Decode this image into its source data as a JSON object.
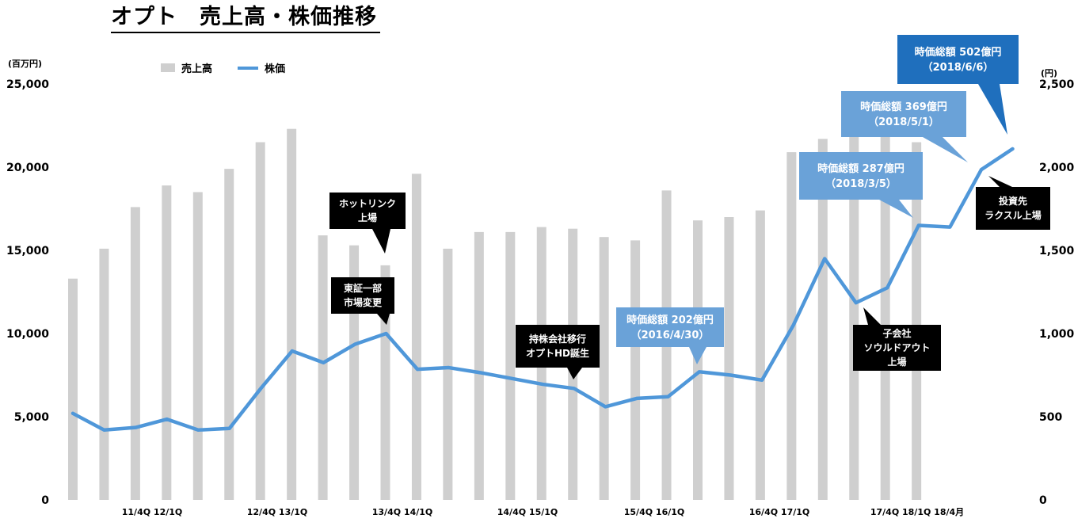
{
  "title": "オプト　売上高・株価推移",
  "left_unit": "(百万円)",
  "right_unit": "(円)",
  "legend": {
    "bar_label": "売上高",
    "line_label": "株価"
  },
  "colors": {
    "bar": "#cfcfcf",
    "line": "#4f97d9",
    "callout_dark": "#000000",
    "callout_blue": "#6aa2d8",
    "callout_blue_dark": "#1f6fbd"
  },
  "chart_data": {
    "type": "bar+line",
    "y_left": {
      "min": 0,
      "max": 25000,
      "ticks": [
        "0",
        "5,000",
        "10,000",
        "15,000",
        "20,000",
        "25,000"
      ]
    },
    "y_right": {
      "min": 0,
      "max": 2500,
      "ticks": [
        "0",
        "500",
        "1,000",
        "1,500",
        "2,000",
        "2,500"
      ]
    },
    "x_labels": [
      "11/4Q 12/1Q",
      "12/4Q 13/1Q",
      "13/4Q 14/1Q",
      "14/4Q 15/1Q",
      "15/4Q 16/1Q",
      "16/4Q 17/1Q",
      "17/4Q 18/1Q 18/4月"
    ],
    "series": [
      {
        "name": "売上高",
        "type": "bar",
        "axis": "left",
        "values": [
          13300,
          15100,
          17600,
          18900,
          18500,
          19900,
          21500,
          22300,
          15900,
          15300,
          14100,
          19600,
          15100,
          16100,
          16100,
          16400,
          16300,
          15800,
          15600,
          18600,
          16800,
          17000,
          17400,
          20900,
          21700,
          22500,
          23000,
          21500
        ]
      },
      {
        "name": "株価",
        "type": "line",
        "axis": "right",
        "values": [
          520,
          420,
          435,
          485,
          420,
          430,
          670,
          895,
          825,
          935,
          1000,
          785,
          795,
          765,
          730,
          695,
          670,
          560,
          610,
          620,
          770,
          750,
          720,
          1050,
          1450,
          1185,
          1275,
          1650,
          1640,
          1985,
          2110
        ]
      }
    ],
    "annotations": [
      {
        "text": [
          "ホットリンク",
          "上場"
        ]
      },
      {
        "text": [
          "東証一部",
          "市場変更"
        ]
      },
      {
        "text": [
          "持株会社移行",
          "オプトHD誕生"
        ]
      },
      {
        "text": [
          "時価総額 202億円",
          "（2016/4/30）"
        ]
      },
      {
        "text": [
          "子会社",
          "ソウルドアウト",
          "上場"
        ]
      },
      {
        "text": [
          "時価総額 287億円",
          "（2018/3/5）"
        ]
      },
      {
        "text": [
          "時価総額 369億円",
          "（2018/5/1）"
        ]
      },
      {
        "text": [
          "時価総額 502億円",
          "（2018/6/6）"
        ]
      },
      {
        "text": [
          "投資先",
          "ラクスル上場"
        ]
      }
    ]
  }
}
